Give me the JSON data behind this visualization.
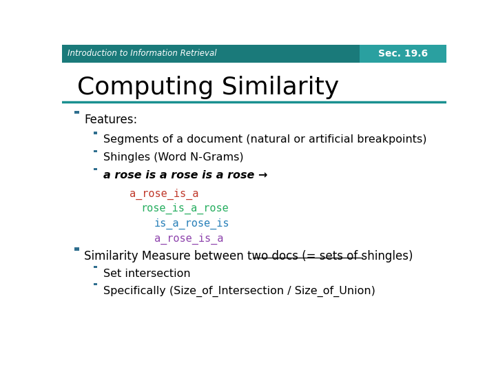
{
  "header_bg": "#1a7a7a",
  "header_text": "Introduction to Information Retrieval",
  "header_text_color": "#ffffff",
  "sec_text": "Sec. 19.6",
  "sec_bg": "#2aa0a0",
  "title": "Computing Similarity",
  "title_color": "#000000",
  "title_line_color": "#1a9090",
  "body_bg": "#ffffff",
  "bullet_color": "#2e6e8e",
  "shingles": [
    {
      "text": "a_rose_is_a",
      "color": "#c0392b",
      "indent": 0.175
    },
    {
      "text": "rose_is_a_rose",
      "color": "#27ae60",
      "indent": 0.205
    },
    {
      "text": "is_a_rose_is",
      "color": "#2980b9",
      "indent": 0.24
    },
    {
      "text": "a_rose_is_a",
      "color": "#8e44ad",
      "indent": 0.24
    }
  ]
}
